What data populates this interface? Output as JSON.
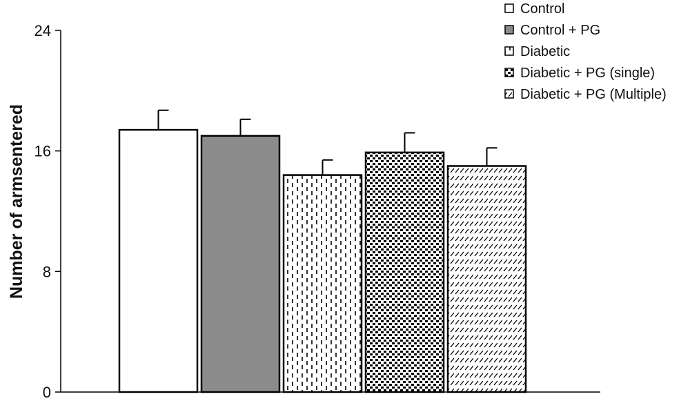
{
  "chart_data": {
    "type": "bar",
    "ylabel": "Number of armsentered",
    "xlabel": "",
    "ylim": [
      0,
      24
    ],
    "yticks": [
      0,
      8,
      16,
      24
    ],
    "grid": false,
    "legend_position": "top-right",
    "series": [
      {
        "name": "Control",
        "value": 17.4,
        "error": 1.3,
        "pattern": "white",
        "color": "#ffffff"
      },
      {
        "name": "Control + PG",
        "value": 17.0,
        "error": 1.1,
        "pattern": "solid",
        "color": "#8c8c8c"
      },
      {
        "name": "Diabetic",
        "value": 14.4,
        "error": 1.0,
        "pattern": "dashes",
        "color": "#ffffff"
      },
      {
        "name": "Diabetic + PG (single)",
        "value": 15.9,
        "error": 1.3,
        "pattern": "dense-dots",
        "color": "#ffffff"
      },
      {
        "name": "Diabetic + PG (Multiple)",
        "value": 15.0,
        "error": 1.2,
        "pattern": "diagonal",
        "color": "#ffffff"
      }
    ]
  }
}
